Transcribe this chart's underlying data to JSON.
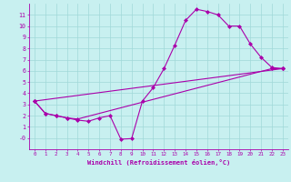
{
  "xlabel": "Windchill (Refroidissement éolien,°C)",
  "background_color": "#c8f0f0",
  "line_color": "#aa00aa",
  "grid_color": "#a0d8d8",
  "xlim": [
    -0.5,
    23.5
  ],
  "ylim": [
    -1,
    12
  ],
  "xticks": [
    0,
    1,
    2,
    3,
    4,
    5,
    6,
    7,
    8,
    9,
    10,
    11,
    12,
    13,
    14,
    15,
    16,
    17,
    18,
    19,
    20,
    21,
    22,
    23
  ],
  "yticks": [
    0,
    1,
    2,
    3,
    4,
    5,
    6,
    7,
    8,
    9,
    10,
    11
  ],
  "series": [
    {
      "x": [
        0,
        1,
        2,
        3,
        4,
        5,
        6,
        7,
        8,
        9,
        10,
        11,
        12,
        13,
        14,
        15,
        16,
        17,
        18,
        19,
        20,
        21,
        22,
        23
      ],
      "y": [
        3.3,
        2.2,
        2.0,
        1.8,
        1.6,
        1.5,
        1.8,
        2.0,
        -0.1,
        -0.05,
        3.3,
        4.5,
        6.2,
        8.3,
        10.5,
        11.5,
        11.3,
        11.0,
        10.0,
        10.0,
        8.4,
        7.2,
        6.3,
        6.2
      ]
    },
    {
      "x": [
        0,
        1,
        2,
        3,
        4,
        22,
        23
      ],
      "y": [
        3.3,
        2.2,
        2.0,
        1.8,
        1.7,
        6.2,
        6.2
      ]
    },
    {
      "x": [
        0,
        23
      ],
      "y": [
        3.3,
        6.2
      ]
    }
  ]
}
